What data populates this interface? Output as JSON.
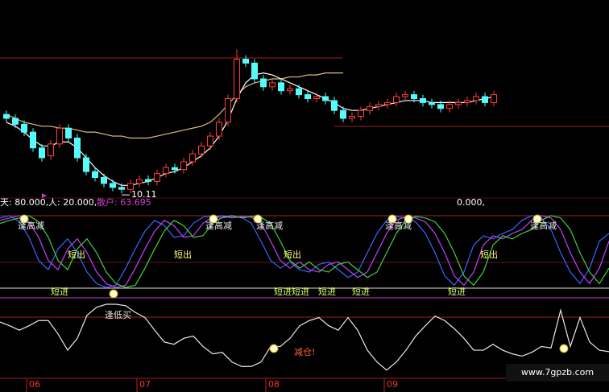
{
  "chart_data": [
    {
      "type": "candlestick",
      "open": [
        42,
        40,
        37,
        33,
        25,
        21,
        27,
        35,
        30,
        20,
        13,
        10,
        7,
        5,
        4,
        7,
        9,
        8,
        12,
        15,
        14,
        18,
        22,
        26,
        31,
        38,
        50,
        70,
        68,
        60,
        56,
        58,
        54,
        55,
        52,
        50,
        51,
        49,
        44,
        40,
        41,
        44,
        46,
        47,
        48,
        51,
        52,
        50,
        48,
        47,
        45,
        47,
        48,
        49,
        51,
        48
      ],
      "high": [
        44,
        42,
        39,
        35,
        27,
        29,
        37,
        37,
        32,
        22,
        15,
        12,
        9,
        7,
        9,
        11,
        11,
        14,
        17,
        17,
        20,
        24,
        28,
        33,
        40,
        52,
        75,
        72,
        70,
        62,
        60,
        60,
        57,
        57,
        54,
        53,
        53,
        51,
        46,
        43,
        46,
        48,
        49,
        50,
        53,
        54,
        54,
        52,
        50,
        49,
        49,
        50,
        51,
        53,
        53,
        54
      ],
      "low": [
        38,
        35,
        31,
        23,
        18,
        19,
        25,
        28,
        18,
        11,
        8,
        5,
        3,
        2,
        2,
        5,
        6,
        6,
        10,
        12,
        12,
        16,
        20,
        24,
        29,
        36,
        48,
        66,
        58,
        54,
        54,
        52,
        52,
        50,
        48,
        48,
        47,
        42,
        38,
        38,
        39,
        42,
        44,
        45,
        46,
        49,
        48,
        46,
        45,
        43,
        43,
        45,
        46,
        47,
        46,
        46
      ],
      "close": [
        40,
        37,
        33,
        25,
        20,
        27,
        35,
        30,
        20,
        13,
        10,
        7,
        5,
        4,
        7,
        9,
        8,
        12,
        15,
        14,
        18,
        22,
        26,
        31,
        38,
        50,
        70,
        68,
        60,
        56,
        58,
        54,
        55,
        52,
        50,
        51,
        49,
        44,
        40,
        41,
        44,
        46,
        47,
        48,
        51,
        52,
        50,
        48,
        47,
        45,
        47,
        48,
        49,
        51,
        48,
        52
      ],
      "up_color": "#ff3c3c",
      "down_color": "#54fcfc",
      "series": [
        {
          "color": "#d8c080",
          "values": [
            42,
            40,
            38,
            37,
            36,
            36,
            35,
            35,
            34,
            33,
            33,
            32,
            31,
            31,
            30,
            30,
            30,
            31,
            32,
            33,
            34,
            35,
            36,
            38,
            42,
            47,
            52,
            56,
            58,
            59,
            60,
            60,
            61,
            61,
            62,
            62,
            63,
            63,
            63,
            null,
            null,
            null,
            null,
            null,
            null,
            null,
            null,
            null,
            null,
            null,
            null,
            null,
            null,
            null,
            null,
            null
          ]
        },
        {
          "color": "#ffffff",
          "values": [
            38,
            36,
            33,
            29,
            26,
            26,
            28,
            28,
            25,
            20,
            15,
            11,
            8,
            6,
            6,
            7,
            8,
            10,
            12,
            13,
            15,
            18,
            21,
            25,
            31,
            39,
            50,
            58,
            62,
            63,
            62,
            60,
            58,
            56,
            54,
            52,
            50,
            48,
            45,
            44,
            44,
            45,
            46,
            47,
            48,
            49,
            49,
            49,
            48,
            48,
            48,
            48,
            48,
            49,
            50,
            51
          ]
        }
      ],
      "annotation": "10.11",
      "ylim": [
        0,
        100
      ]
    },
    {
      "type": "line",
      "header": [
        "天: 80.000,",
        "人: 20.000,",
        "散户: 63.695",
        "0.000,"
      ],
      "series": [
        {
          "color": "#3c64ff",
          "values": [
            95,
            98,
            90,
            70,
            40,
            28,
            55,
            68,
            50,
            25,
            10,
            5,
            8,
            30,
            55,
            78,
            92,
            85,
            70,
            72,
            88,
            96,
            98,
            95,
            97,
            96,
            88,
            65,
            40,
            30,
            38,
            28,
            25,
            35,
            38,
            28,
            18,
            25,
            50,
            75,
            92,
            97,
            95,
            90,
            75,
            50,
            20,
            8,
            25,
            60,
            72,
            68,
            75,
            80,
            92,
            98,
            95,
            80,
            50,
            25,
            10,
            30,
            65,
            75
          ]
        },
        {
          "color": "#c040ff",
          "values": [
            92,
            95,
            98,
            90,
            70,
            40,
            28,
            55,
            68,
            50,
            25,
            10,
            5,
            8,
            30,
            55,
            78,
            92,
            85,
            70,
            72,
            88,
            96,
            98,
            95,
            97,
            96,
            88,
            65,
            40,
            30,
            38,
            28,
            25,
            35,
            38,
            28,
            18,
            25,
            50,
            75,
            92,
            97,
            95,
            90,
            75,
            50,
            20,
            8,
            25,
            60,
            72,
            68,
            75,
            80,
            92,
            98,
            95,
            80,
            50,
            25,
            10,
            30,
            65
          ]
        },
        {
          "color": "#40d040",
          "values": [
            88,
            92,
            95,
            98,
            90,
            70,
            40,
            28,
            55,
            68,
            50,
            25,
            10,
            5,
            8,
            30,
            55,
            78,
            92,
            85,
            70,
            72,
            88,
            96,
            98,
            95,
            97,
            96,
            88,
            65,
            40,
            30,
            38,
            28,
            25,
            35,
            38,
            28,
            18,
            25,
            50,
            75,
            92,
            97,
            95,
            90,
            75,
            50,
            20,
            8,
            25,
            60,
            72,
            68,
            75,
            80,
            92,
            98,
            95,
            80,
            50,
            25,
            10,
            30
          ]
        }
      ],
      "annotations": [
        "逢高减",
        "逢高减",
        "逢高减",
        "逢高减",
        "逢高减",
        "短出",
        "短出",
        "短出",
        "短出",
        "短进",
        "短进",
        "短进",
        "短进",
        "短进",
        "短进"
      ],
      "ylim": [
        0,
        100
      ]
    },
    {
      "type": "line",
      "series": [
        {
          "color": "#e8e8e8",
          "values": [
            76,
            71,
            65,
            71,
            78,
            78,
            60,
            38,
            54,
            85,
            96,
            100,
            100,
            98,
            89,
            82,
            65,
            49,
            46,
            54,
            57,
            43,
            33,
            35,
            22,
            16,
            16,
            22,
            43,
            43,
            54,
            71,
            78,
            82,
            71,
            65,
            82,
            65,
            38,
            22,
            11,
            22,
            38,
            57,
            71,
            84,
            78,
            67,
            54,
            38,
            38,
            46,
            38,
            33,
            30,
            35,
            43,
            41,
            92,
            43,
            82,
            49,
            38,
            36
          ]
        }
      ],
      "annotations": [
        "逢低买",
        "减仓!"
      ],
      "x_labels": [
        "06",
        "07",
        "08",
        "09"
      ],
      "watermark": "www.7gpzb.com",
      "ylim": [
        0,
        100
      ]
    }
  ]
}
